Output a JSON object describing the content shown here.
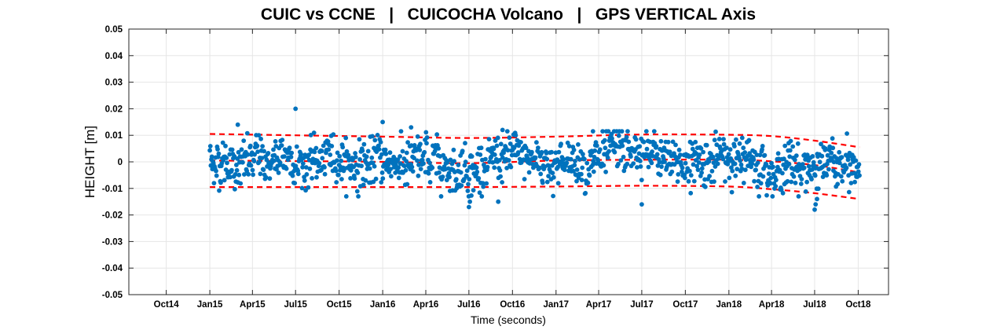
{
  "chart_data": {
    "type": "scatter",
    "title": "CUIC vs CCNE   |   CUICOCHA Volcano   |   GPS VERTICAL Axis",
    "xlabel": "Time (seconds)",
    "ylabel": "HEIGHT [m]",
    "ylim": [
      -0.05,
      0.05
    ],
    "xlim": [
      "2014-07-14",
      "2018-12-04"
    ],
    "grid": true,
    "x_ticks": [
      {
        "date": "2014-10-01",
        "label": "Oct14"
      },
      {
        "date": "2015-01-01",
        "label": "Jan15"
      },
      {
        "date": "2015-04-01",
        "label": "Apr15"
      },
      {
        "date": "2015-07-01",
        "label": "Jul15"
      },
      {
        "date": "2015-10-01",
        "label": "Oct15"
      },
      {
        "date": "2016-01-01",
        "label": "Jan16"
      },
      {
        "date": "2016-04-01",
        "label": "Apr16"
      },
      {
        "date": "2016-07-01",
        "label": "Jul16"
      },
      {
        "date": "2016-10-01",
        "label": "Oct16"
      },
      {
        "date": "2017-01-01",
        "label": "Jan17"
      },
      {
        "date": "2017-04-01",
        "label": "Apr17"
      },
      {
        "date": "2017-07-01",
        "label": "Jul17"
      },
      {
        "date": "2017-10-01",
        "label": "Oct17"
      },
      {
        "date": "2018-01-01",
        "label": "Jan18"
      },
      {
        "date": "2018-04-01",
        "label": "Apr18"
      },
      {
        "date": "2018-07-01",
        "label": "Jul18"
      },
      {
        "date": "2018-10-01",
        "label": "Oct18"
      }
    ],
    "y_ticks": [
      {
        "value": 0.05,
        "label": "0.05"
      },
      {
        "value": 0.04,
        "label": "0.04"
      },
      {
        "value": 0.03,
        "label": "0.03"
      },
      {
        "value": 0.02,
        "label": "0.02"
      },
      {
        "value": 0.01,
        "label": "0.01"
      },
      {
        "value": 0,
        "label": "0"
      },
      {
        "value": -0.01,
        "label": "-0.01"
      },
      {
        "value": -0.02,
        "label": "-0.02"
      },
      {
        "value": -0.03,
        "label": "-0.03"
      },
      {
        "value": -0.04,
        "label": "-0.04"
      },
      {
        "value": -0.05,
        "label": "-0.05"
      }
    ],
    "colors": {
      "points": "#0072BD",
      "trend": "#FF0000",
      "grid": "#E6E6E6",
      "axis": "#262626"
    },
    "points": {
      "date_range": [
        "2015-01-01",
        "2018-10-04"
      ],
      "spacing_days": 1.1,
      "noise_std": 0.0042,
      "trend_key": "trend_center",
      "explicit_points": [
        {
          "x": "2015-07-01",
          "y": 0.02
        },
        {
          "x": "2016-01-01",
          "y": 0.015
        },
        {
          "x": "2015-03-01",
          "y": 0.014
        },
        {
          "x": "2016-03-01",
          "y": 0.013
        },
        {
          "x": "2016-09-10",
          "y": 0.012
        },
        {
          "x": "2017-03-20",
          "y": 0.0115
        },
        {
          "x": "2016-07-01",
          "y": -0.017
        },
        {
          "x": "2016-07-03",
          "y": -0.015
        },
        {
          "x": "2016-09-01",
          "y": -0.015
        },
        {
          "x": "2017-07-01",
          "y": -0.016
        },
        {
          "x": "2018-07-01",
          "y": -0.018
        },
        {
          "x": "2018-07-03",
          "y": -0.016
        },
        {
          "x": "2018-07-06",
          "y": -0.014
        }
      ]
    },
    "trend_center": {
      "x": [
        "2015-01-01",
        "2015-07-01",
        "2016-01-01",
        "2016-07-01",
        "2017-01-01",
        "2017-07-01",
        "2018-01-01",
        "2018-04-01",
        "2018-07-01",
        "2018-10-04"
      ],
      "y": [
        0.0005,
        0.0003,
        0.0,
        -0.0005,
        0.0005,
        0.0008,
        0.0008,
        0.0002,
        -0.0012,
        -0.004
      ]
    },
    "trend_upper": {
      "x": [
        "2015-01-01",
        "2015-07-01",
        "2016-01-01",
        "2016-07-01",
        "2017-01-01",
        "2017-07-01",
        "2018-01-01",
        "2018-04-01",
        "2018-07-01",
        "2018-10-04"
      ],
      "y": [
        0.0105,
        0.01,
        0.0095,
        0.009,
        0.0095,
        0.0103,
        0.0102,
        0.0097,
        0.008,
        0.0055
      ]
    },
    "trend_lower": {
      "x": [
        "2015-01-01",
        "2015-07-01",
        "2016-01-01",
        "2016-07-01",
        "2017-01-01",
        "2017-07-01",
        "2018-01-01",
        "2018-04-01",
        "2018-07-01",
        "2018-10-04"
      ],
      "y": [
        -0.0095,
        -0.0095,
        -0.0095,
        -0.0095,
        -0.0093,
        -0.009,
        -0.0093,
        -0.0103,
        -0.0118,
        -0.014
      ]
    }
  }
}
